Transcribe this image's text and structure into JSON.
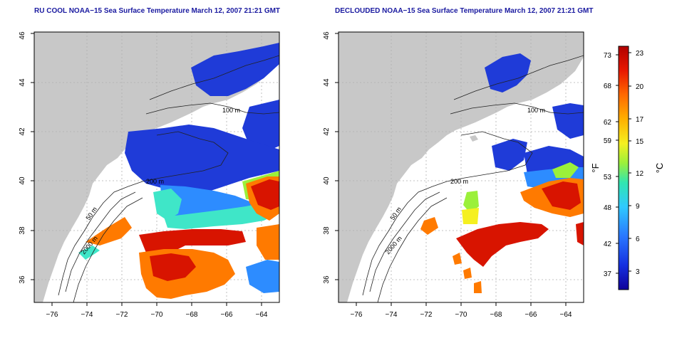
{
  "panels": [
    {
      "title": "RU COOL NOAA−15 Sea Surface Temperature March 12, 2007 21:21 GMT",
      "contour_labels": [
        "100 m",
        "200 m",
        "50 m",
        "2000 m"
      ]
    },
    {
      "title": "DECLOUDED NOAA−15 Sea Surface Temperature March 12, 2007 21:21 GMT",
      "contour_labels": [
        "100 m",
        "200 m",
        "50 m",
        "2000 m"
      ]
    }
  ],
  "axes": {
    "x_ticks": [
      "−76",
      "−74",
      "−72",
      "−70",
      "−68",
      "−66",
      "−64"
    ],
    "y_ticks": [
      "36",
      "38",
      "40",
      "42",
      "44",
      "46"
    ]
  },
  "colorbar": {
    "label_f": "°F",
    "label_c": "°C",
    "f_ticks": [
      "73",
      "68",
      "62",
      "59",
      "53",
      "48",
      "42",
      "37"
    ],
    "c_ticks": [
      "23",
      "20",
      "17",
      "15",
      "12",
      "9",
      "6",
      "3"
    ],
    "colors": [
      "#10009a",
      "#1530e0",
      "#2a78ff",
      "#2fc9ff",
      "#31e6b0",
      "#9bf03a",
      "#f5f020",
      "#ffb000",
      "#ff6a00",
      "#e81800",
      "#b00000"
    ]
  },
  "colors": {
    "land": "#c8c8c8",
    "cold": "#1f3bd8",
    "cool": "#2d8cff",
    "mid": "#3fe6c8",
    "warm": "#ff7a00",
    "hot": "#d81400",
    "title": "#1a1aa0",
    "grid": "#b0b0b0"
  }
}
